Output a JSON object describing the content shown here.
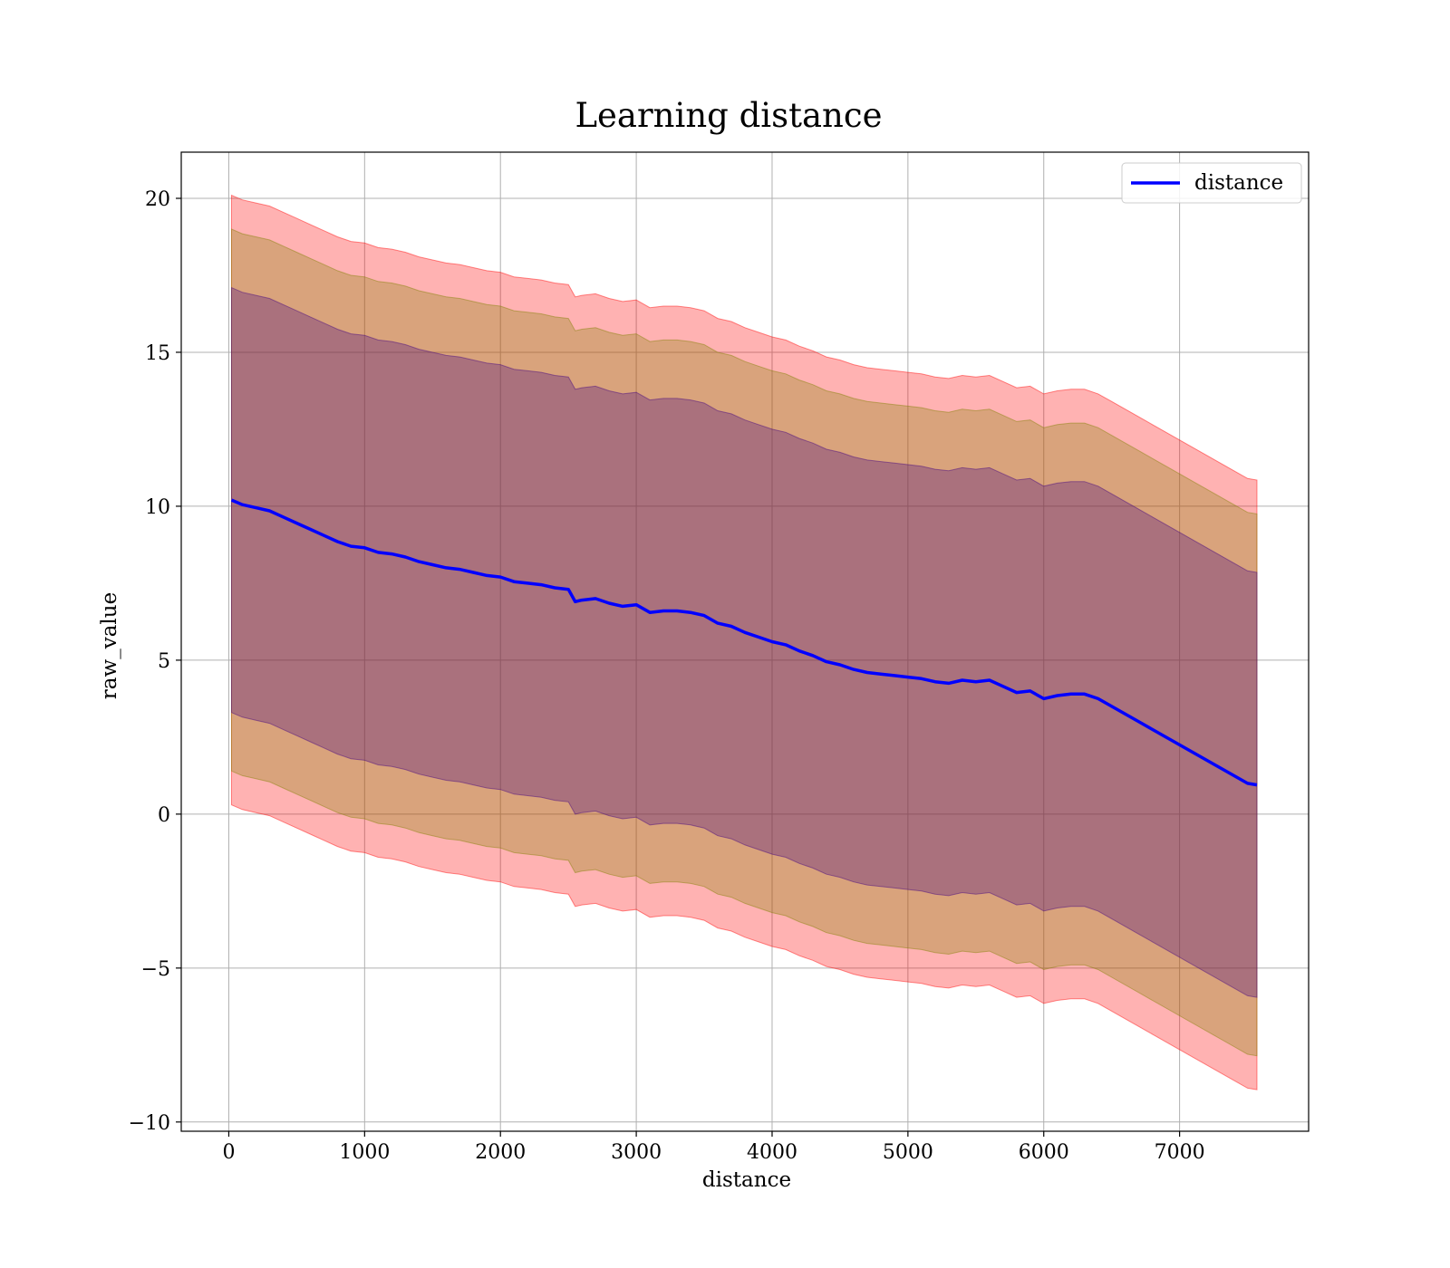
{
  "chart_data": {
    "type": "line",
    "title": "Learning distance",
    "xlabel": "distance",
    "ylabel": "raw_value",
    "xlim": [
      -350,
      7950
    ],
    "ylim": [
      -10.3,
      21.5
    ],
    "xticks": [
      0,
      1000,
      2000,
      3000,
      4000,
      5000,
      6000,
      7000
    ],
    "yticks": [
      -10,
      -5,
      0,
      5,
      10,
      15,
      20
    ],
    "ytick_labels": [
      "−10",
      "−5",
      "0",
      "5",
      "10",
      "15",
      "20"
    ],
    "grid": true,
    "legend": {
      "position": "top-right",
      "entries": [
        "distance"
      ]
    },
    "series": [
      {
        "name": "distance",
        "color": "#0000ff",
        "x": [
          20,
          100,
          200,
          300,
          400,
          500,
          600,
          700,
          800,
          900,
          1000,
          1100,
          1200,
          1300,
          1400,
          1500,
          1600,
          1700,
          1800,
          1900,
          2000,
          2100,
          2200,
          2300,
          2400,
          2500,
          2550,
          2600,
          2700,
          2800,
          2900,
          3000,
          3100,
          3200,
          3300,
          3400,
          3500,
          3600,
          3700,
          3800,
          3900,
          4000,
          4100,
          4200,
          4300,
          4400,
          4500,
          4600,
          4700,
          4800,
          4900,
          5000,
          5100,
          5200,
          5300,
          5400,
          5500,
          5600,
          5700,
          5800,
          5900,
          6000,
          6100,
          6200,
          6300,
          6400,
          6500,
          6600,
          6700,
          6800,
          6900,
          7000,
          7100,
          7200,
          7300,
          7400,
          7500,
          7570
        ],
        "y": [
          10.2,
          10.05,
          9.95,
          9.85,
          9.65,
          9.45,
          9.25,
          9.05,
          8.85,
          8.7,
          8.65,
          8.5,
          8.45,
          8.35,
          8.2,
          8.1,
          8.0,
          7.95,
          7.85,
          7.75,
          7.7,
          7.55,
          7.5,
          7.45,
          7.35,
          7.3,
          6.9,
          6.95,
          7.0,
          6.85,
          6.75,
          6.8,
          6.55,
          6.6,
          6.6,
          6.55,
          6.45,
          6.2,
          6.1,
          5.9,
          5.75,
          5.6,
          5.5,
          5.3,
          5.15,
          4.95,
          4.85,
          4.7,
          4.6,
          4.55,
          4.5,
          4.45,
          4.4,
          4.3,
          4.25,
          4.35,
          4.3,
          4.35,
          4.15,
          3.95,
          4.0,
          3.75,
          3.85,
          3.9,
          3.9,
          3.75,
          3.5,
          3.25,
          3.0,
          2.75,
          2.5,
          2.25,
          2.0,
          1.75,
          1.5,
          1.25,
          1.0,
          0.95
        ]
      }
    ],
    "bands": [
      {
        "lower_offset": -9.9,
        "upper_offset": 9.9,
        "fill": "#ff0000",
        "opacity": 0.3
      },
      {
        "lower_offset": -8.8,
        "upper_offset": 8.8,
        "fill": "#808000",
        "opacity": 0.3
      },
      {
        "lower_offset": -6.9,
        "upper_offset": 6.9,
        "fill": "#400080",
        "opacity": 0.3
      }
    ]
  }
}
